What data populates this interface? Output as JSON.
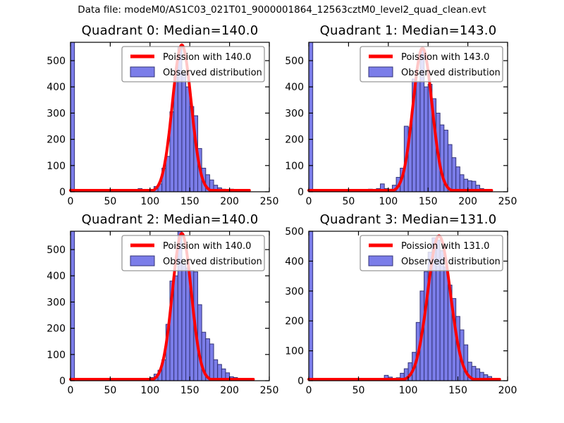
{
  "figure": {
    "title": "Data file: modeM0/AS1C03_021T01_9000001864_12563cztM0_level2_quad_clean.evt",
    "background": "#ffffff"
  },
  "colors": {
    "bar_fill": "#7b7de9",
    "bar_edge": "#333377",
    "curve": "#ff0000",
    "axis": "#000000",
    "text": "#000000",
    "legend_border": "#999999",
    "legend_bg": "rgba(255,255,255,0.78)"
  },
  "chart_data": [
    {
      "type": "bar",
      "title": "Quadrant 0: Median=140.0",
      "legend": [
        "Poission with 140.0",
        "Observed distribution"
      ],
      "legend_position": "upper right",
      "xlim": [
        0,
        250
      ],
      "ylim": [
        0,
        570
      ],
      "xticks": [
        0,
        50,
        100,
        150,
        200,
        250
      ],
      "yticks": [
        0,
        100,
        200,
        300,
        400,
        500
      ],
      "xlabel": "",
      "ylabel": "",
      "grid": false,
      "bin_width": 5,
      "bars": [
        [
          0,
          570
        ],
        [
          65,
          4
        ],
        [
          70,
          4
        ],
        [
          85,
          12
        ],
        [
          100,
          8
        ],
        [
          105,
          20
        ],
        [
          110,
          30
        ],
        [
          115,
          90
        ],
        [
          120,
          135
        ],
        [
          125,
          305
        ],
        [
          130,
          440
        ],
        [
          135,
          550
        ],
        [
          140,
          450
        ],
        [
          145,
          400
        ],
        [
          150,
          325
        ],
        [
          155,
          290
        ],
        [
          160,
          165
        ],
        [
          165,
          90
        ],
        [
          170,
          65
        ],
        [
          175,
          45
        ],
        [
          180,
          25
        ],
        [
          185,
          15
        ],
        [
          190,
          10
        ],
        [
          195,
          8
        ],
        [
          200,
          10
        ],
        [
          205,
          5
        ],
        [
          210,
          8
        ],
        [
          215,
          4
        ],
        [
          220,
          3
        ]
      ],
      "curve": {
        "shape": "gaussian",
        "mu": 140.0,
        "sigma": 11.83,
        "peak": 560,
        "x_start": 0,
        "x_end": 225
      }
    },
    {
      "type": "bar",
      "title": "Quadrant 1: Median=143.0",
      "legend": [
        "Poission with 143.0",
        "Observed distribution"
      ],
      "legend_position": "upper right",
      "xlim": [
        0,
        250
      ],
      "ylim": [
        0,
        570
      ],
      "xticks": [
        0,
        50,
        100,
        150,
        200,
        250
      ],
      "yticks": [
        0,
        100,
        200,
        300,
        400,
        500
      ],
      "xlabel": "",
      "ylabel": "",
      "grid": false,
      "bin_width": 5,
      "bars": [
        [
          0,
          570
        ],
        [
          30,
          4
        ],
        [
          60,
          3
        ],
        [
          65,
          8
        ],
        [
          70,
          5
        ],
        [
          75,
          10
        ],
        [
          80,
          8
        ],
        [
          85,
          12
        ],
        [
          90,
          30
        ],
        [
          95,
          12
        ],
        [
          100,
          10
        ],
        [
          105,
          25
        ],
        [
          110,
          55
        ],
        [
          115,
          90
        ],
        [
          120,
          250
        ],
        [
          125,
          245
        ],
        [
          130,
          430
        ],
        [
          135,
          420
        ],
        [
          140,
          545
        ],
        [
          145,
          400
        ],
        [
          150,
          410
        ],
        [
          155,
          355
        ],
        [
          160,
          300
        ],
        [
          165,
          255
        ],
        [
          170,
          235
        ],
        [
          175,
          180
        ],
        [
          180,
          130
        ],
        [
          185,
          95
        ],
        [
          190,
          65
        ],
        [
          195,
          48
        ],
        [
          200,
          42
        ],
        [
          205,
          40
        ],
        [
          210,
          25
        ],
        [
          215,
          12
        ],
        [
          220,
          8
        ],
        [
          225,
          4
        ]
      ],
      "curve": {
        "shape": "gaussian",
        "mu": 143.0,
        "sigma": 11.96,
        "peak": 548,
        "x_start": 0,
        "x_end": 230
      }
    },
    {
      "type": "bar",
      "title": "Quadrant 2: Median=140.0",
      "legend": [
        "Poission with 140.0",
        "Observed distribution"
      ],
      "legend_position": "upper right",
      "xlim": [
        0,
        250
      ],
      "ylim": [
        0,
        570
      ],
      "xticks": [
        0,
        50,
        100,
        150,
        200,
        250
      ],
      "yticks": [
        0,
        100,
        200,
        300,
        400,
        500
      ],
      "xlabel": "",
      "ylabel": "",
      "grid": false,
      "bin_width": 5,
      "bars": [
        [
          0,
          570
        ],
        [
          85,
          8
        ],
        [
          95,
          5
        ],
        [
          100,
          12
        ],
        [
          105,
          25
        ],
        [
          110,
          40
        ],
        [
          115,
          80
        ],
        [
          120,
          215
        ],
        [
          125,
          380
        ],
        [
          130,
          400
        ],
        [
          135,
          570
        ],
        [
          140,
          445
        ],
        [
          145,
          430
        ],
        [
          150,
          420
        ],
        [
          155,
          415
        ],
        [
          160,
          290
        ],
        [
          165,
          185
        ],
        [
          170,
          160
        ],
        [
          175,
          140
        ],
        [
          180,
          80
        ],
        [
          185,
          62
        ],
        [
          190,
          45
        ],
        [
          195,
          30
        ],
        [
          200,
          15
        ],
        [
          205,
          12
        ],
        [
          210,
          7
        ],
        [
          215,
          4
        ],
        [
          225,
          3
        ]
      ],
      "curve": {
        "shape": "gaussian",
        "mu": 140.0,
        "sigma": 11.83,
        "peak": 562,
        "x_start": 0,
        "x_end": 230
      }
    },
    {
      "type": "bar",
      "title": "Quadrant 3: Median=131.0",
      "legend": [
        "Poission with 131.0",
        "Observed distribution"
      ],
      "legend_position": "upper right",
      "xlim": [
        0,
        200
      ],
      "ylim": [
        0,
        500
      ],
      "xticks": [
        0,
        50,
        100,
        150,
        200
      ],
      "yticks": [
        0,
        100,
        200,
        300,
        400,
        500
      ],
      "xlabel": "",
      "ylabel": "",
      "grid": false,
      "bin_width": 4,
      "bars": [
        [
          0,
          500
        ],
        [
          60,
          4
        ],
        [
          64,
          5
        ],
        [
          68,
          6
        ],
        [
          72,
          8
        ],
        [
          76,
          18
        ],
        [
          80,
          12
        ],
        [
          84,
          8
        ],
        [
          88,
          10
        ],
        [
          92,
          25
        ],
        [
          96,
          40
        ],
        [
          100,
          60
        ],
        [
          104,
          95
        ],
        [
          108,
          195
        ],
        [
          112,
          300
        ],
        [
          116,
          365
        ],
        [
          120,
          430
        ],
        [
          124,
          478
        ],
        [
          128,
          470
        ],
        [
          132,
          435
        ],
        [
          136,
          380
        ],
        [
          140,
          320
        ],
        [
          144,
          275
        ],
        [
          148,
          215
        ],
        [
          152,
          170
        ],
        [
          156,
          120
        ],
        [
          160,
          62
        ],
        [
          164,
          48
        ],
        [
          168,
          40
        ],
        [
          172,
          28
        ],
        [
          176,
          20
        ],
        [
          180,
          14
        ],
        [
          184,
          8
        ],
        [
          188,
          5
        ]
      ],
      "curve": {
        "shape": "gaussian",
        "mu": 131.0,
        "sigma": 11.45,
        "peak": 485,
        "x_start": 0,
        "x_end": 192
      }
    }
  ]
}
